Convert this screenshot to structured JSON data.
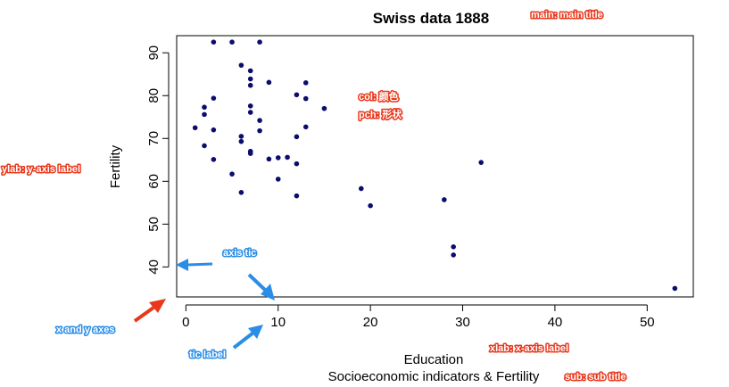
{
  "colors": {
    "point": "#0c0c6e",
    "annotation_red": "#e8381c",
    "annotation_blue": "#2b8ee6"
  },
  "chart_data": {
    "type": "scatter",
    "title": "Swiss data 1888",
    "subtitle": "Socioeconomic indicators & Fertility",
    "xlabel": "Education",
    "ylabel": "Fertility",
    "xlim": [
      -1,
      55
    ],
    "ylim": [
      33,
      94
    ],
    "xticks": [
      0,
      10,
      20,
      30,
      40,
      50
    ],
    "yticks": [
      40,
      50,
      60,
      70,
      80,
      90
    ],
    "xtick_labels": [
      "0",
      "10",
      "20",
      "30",
      "40",
      "50"
    ],
    "ytick_labels": [
      "40",
      "50",
      "60",
      "70",
      "80",
      "90"
    ],
    "grid": false,
    "series": [
      {
        "x": [
          3,
          5,
          8,
          6,
          7,
          7,
          7,
          9,
          3,
          12,
          13,
          13,
          15,
          2,
          2,
          7,
          7,
          8,
          13,
          1,
          3,
          6,
          6,
          8,
          12,
          2,
          7,
          7,
          9,
          10,
          11,
          12,
          3,
          5,
          10,
          6,
          12,
          19,
          20,
          28,
          32,
          29,
          29,
          53
        ],
        "y": [
          92.5,
          92.5,
          92.5,
          87.1,
          85.8,
          83.9,
          82.4,
          83.1,
          79.4,
          80.2,
          83.0,
          79.3,
          77.0,
          77.3,
          75.6,
          77.6,
          76.1,
          74.2,
          72.7,
          72.5,
          72.0,
          70.5,
          69.3,
          71.8,
          70.4,
          68.3,
          67.0,
          66.5,
          65.2,
          65.5,
          65.6,
          64.1,
          65.1,
          61.7,
          60.5,
          57.4,
          56.6,
          58.3,
          54.3,
          55.7,
          64.4,
          44.7,
          42.8,
          35.0
        ]
      }
    ]
  },
  "annotations": {
    "main": "main: main title",
    "col": "col: 颜色",
    "pch": "pch:  形状",
    "ylab": "ylab: y-axis label",
    "axis_tic": "axis tic",
    "axes": "x and y axes",
    "tic_label": "tic label",
    "xlab": "xlab: x-axis label",
    "sub": "sub: sub title"
  }
}
